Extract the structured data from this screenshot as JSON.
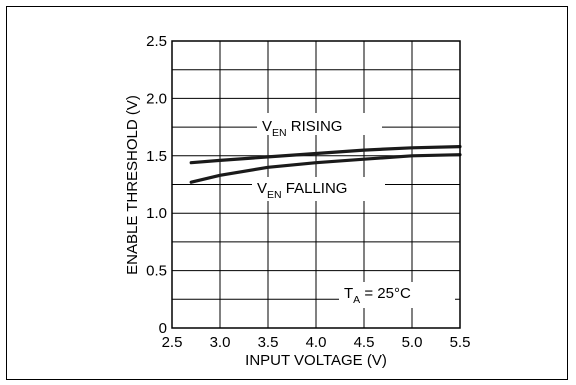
{
  "chart_data": {
    "type": "line",
    "xlabel": "INPUT VOLTAGE (V)",
    "ylabel": "ENABLE THRESHOLD (V)",
    "xlim": [
      2.5,
      5.5
    ],
    "ylim": [
      0,
      2.5
    ],
    "xticks": [
      "2.5",
      "3.0",
      "3.5",
      "4.0",
      "4.5",
      "5.0",
      "5.5"
    ],
    "yticks": [
      "0",
      "0.5",
      "1.0",
      "1.5",
      "2.0",
      "2.5"
    ],
    "grid": true,
    "series": [
      {
        "name_main": "V",
        "name_sub": "EN",
        "name_rest": " RISING",
        "x": [
          2.7,
          3.0,
          3.5,
          4.0,
          4.5,
          5.0,
          5.5
        ],
        "y": [
          1.44,
          1.46,
          1.49,
          1.52,
          1.55,
          1.57,
          1.58
        ]
      },
      {
        "name_main": "V",
        "name_sub": "EN",
        "name_rest": " FALLING",
        "x": [
          2.7,
          3.0,
          3.5,
          4.0,
          4.5,
          5.0,
          5.5
        ],
        "y": [
          1.27,
          1.33,
          1.4,
          1.44,
          1.47,
          1.5,
          1.51
        ]
      }
    ],
    "annotation": {
      "main": "T",
      "sub": "A",
      "rest": " = 25°C"
    }
  }
}
